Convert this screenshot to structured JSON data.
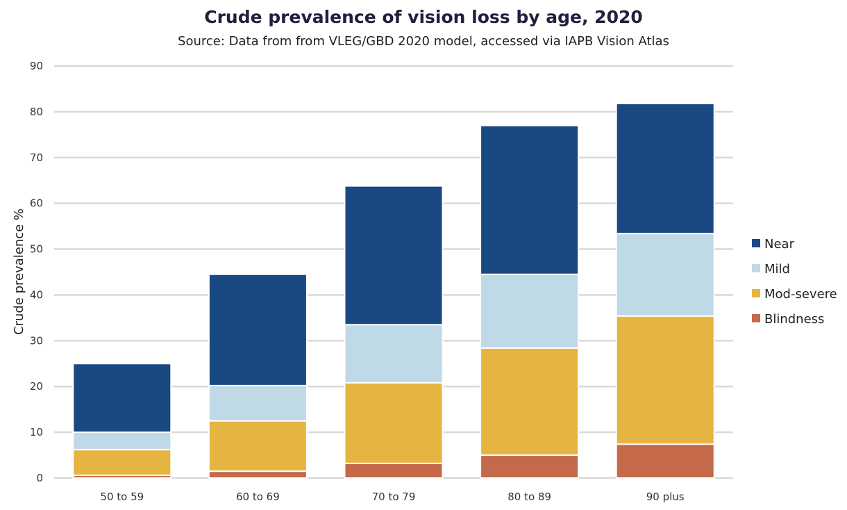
{
  "chart_data": {
    "type": "bar",
    "stacked": true,
    "title": "Crude prevalence of vision loss by age, 2020",
    "subtitle": "Source: Data from from VLEG/GBD 2020 model, accessed via IAPB Vision Atlas",
    "xlabel": "",
    "ylabel": "Crude prevalence %",
    "ylim": [
      0,
      90
    ],
    "yticks": [
      0,
      10,
      20,
      30,
      40,
      50,
      60,
      70,
      80,
      90
    ],
    "grid": true,
    "legend_position": "right",
    "categories": [
      "50 to 59",
      "60 to 69",
      "70 to 79",
      "80 to 89",
      "90 plus"
    ],
    "series": [
      {
        "name": "Blindness",
        "color": "#c4694a",
        "values": [
          0.6,
          1.5,
          3.2,
          5.0,
          7.4
        ]
      },
      {
        "name": "Mod-severe",
        "color": "#e6b441",
        "values": [
          5.6,
          11.0,
          17.6,
          23.4,
          28.0
        ]
      },
      {
        "name": "Mild",
        "color": "#c0d9e6",
        "values": [
          3.8,
          7.7,
          12.7,
          16.1,
          18.0
        ]
      },
      {
        "name": "Near",
        "color": "#1a4882",
        "values": [
          15.0,
          24.3,
          30.3,
          32.5,
          28.4
        ]
      }
    ],
    "legend_order": [
      "Near",
      "Mild",
      "Mod-severe",
      "Blindness"
    ],
    "gridline_color": "#d9d9d9"
  }
}
